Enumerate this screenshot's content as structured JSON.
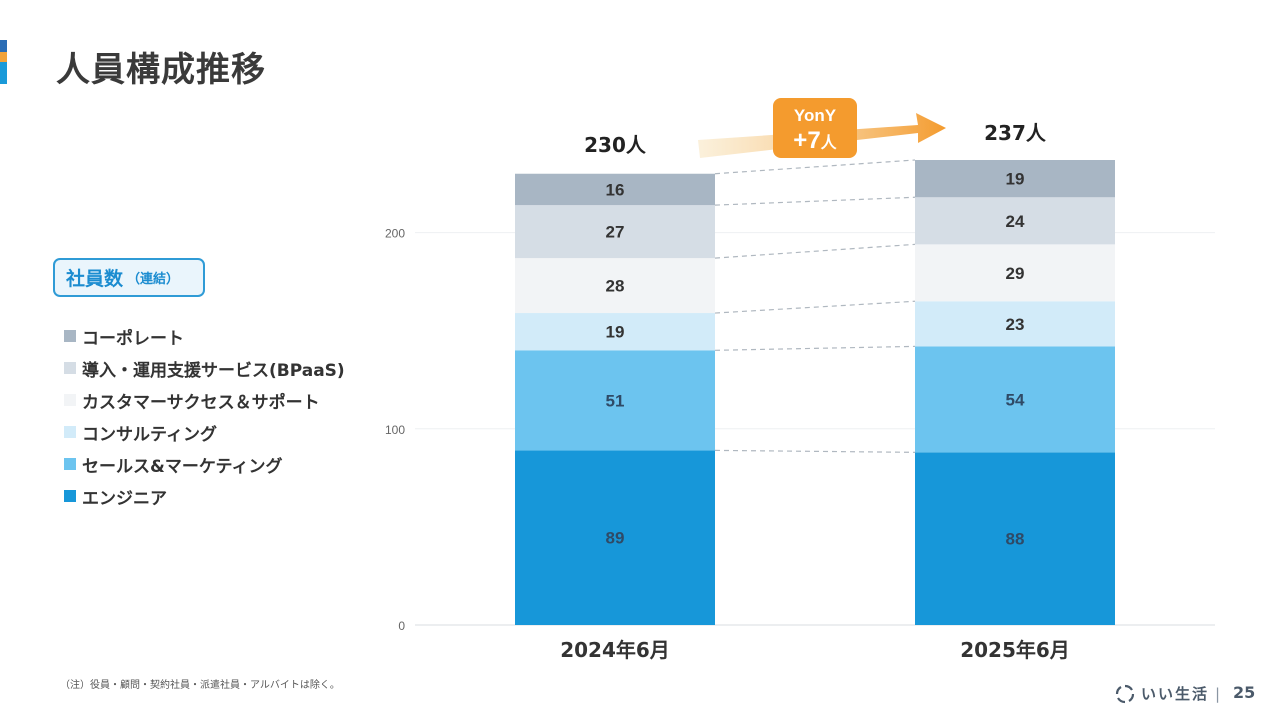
{
  "title": "人員構成推移",
  "badge": {
    "main": "社員数",
    "sub": "（連結）"
  },
  "footnote": "（注）役員・顧問・契約社員・派遣社員・アルバイトは除く。",
  "footer": {
    "company": "いい生活",
    "separator": "|",
    "page": "25"
  },
  "colors": {
    "accent_blue": "#1a9ad9",
    "accent_orange": "#f2a33a",
    "accent_dark_blue": "#2a6db5"
  },
  "yoy": {
    "label": "YonY",
    "value": "+7",
    "unit": "人"
  },
  "chart_data": {
    "type": "bar",
    "stacked": true,
    "categories": [
      "2024年6月",
      "2025年6月"
    ],
    "totals": [
      "230人",
      "237人"
    ],
    "ylim": [
      0,
      237
    ],
    "yticks": [
      0,
      100,
      200
    ],
    "grid": true,
    "legend_position": "left",
    "series": [
      {
        "name": "エンジニア",
        "values": [
          89,
          88
        ],
        "color": "#1797d9",
        "label_color": "#2f4a66"
      },
      {
        "name": "セールス&マーケティング",
        "values": [
          51,
          54
        ],
        "color": "#6cc4ef",
        "label_color": "#2f4a66"
      },
      {
        "name": "コンサルティング",
        "values": [
          19,
          23
        ],
        "color": "#d2ebf9",
        "label_color": "#333333"
      },
      {
        "name": "カスタマーサクセス＆サポート",
        "values": [
          28,
          29
        ],
        "color": "#f2f4f6",
        "label_color": "#333333"
      },
      {
        "name": "導入・運用支援サービス(BPaaS)",
        "values": [
          27,
          24
        ],
        "color": "#d5dde5",
        "label_color": "#333333"
      },
      {
        "name": "コーポレート",
        "values": [
          16,
          19
        ],
        "color": "#a8b6c4",
        "label_color": "#333333"
      }
    ]
  }
}
